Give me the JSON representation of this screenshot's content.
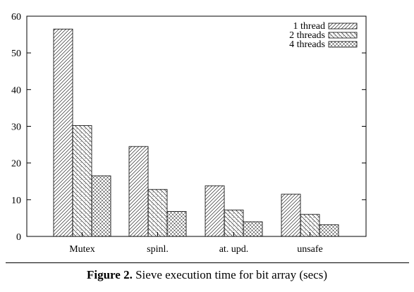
{
  "chart_data": {
    "type": "bar",
    "categories": [
      "Mutex",
      "spinl.",
      "at. upd.",
      "unsafe"
    ],
    "series": [
      {
        "name": "1 thread",
        "values": [
          56.5,
          24.5,
          13.8,
          11.5
        ]
      },
      {
        "name": "2 threads",
        "values": [
          30.2,
          12.8,
          7.2,
          6.0
        ]
      },
      {
        "name": "4 threads",
        "values": [
          16.5,
          6.8,
          4.0,
          3.2
        ]
      }
    ],
    "yticks": [
      "0",
      "10",
      "20",
      "30",
      "40",
      "50",
      "60"
    ],
    "ylim": [
      0,
      60
    ],
    "legend_position": "top-right",
    "grid": false
  },
  "caption": {
    "label": "Figure 2.",
    "text": "Sieve execution time for bit array (secs)"
  }
}
